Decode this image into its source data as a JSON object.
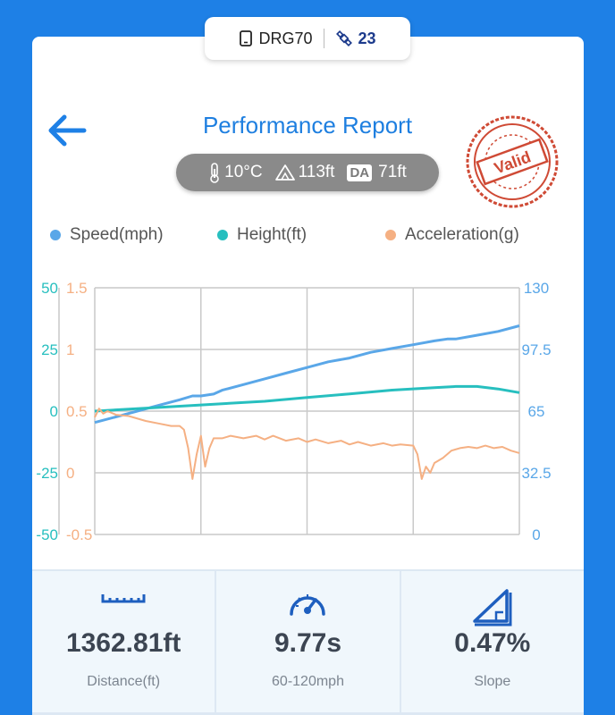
{
  "device": {
    "name": "DRG70",
    "satellites": "23",
    "phone_icon": "phone-icon",
    "satellite_icon": "satellite-icon"
  },
  "header": {
    "title": "Performance Report",
    "back_icon": "back-arrow-icon",
    "stamp_text": "Valid"
  },
  "conditions": {
    "temperature": "10°C",
    "altitude": "113ft",
    "da_label": "DA",
    "density_altitude": "71ft"
  },
  "legend": [
    {
      "label": "Speed(mph)",
      "color": "#5aa7e8"
    },
    {
      "label": "Height(ft)",
      "color": "#27bfbf"
    },
    {
      "label": "Acceleration(g)",
      "color": "#f5b083"
    }
  ],
  "chart_data": {
    "type": "line",
    "x": [],
    "axes": {
      "height_left": {
        "ticks": [
          "50",
          "25",
          "0",
          "-25",
          "-50"
        ],
        "range": [
          -50,
          50
        ],
        "color": "#27bfbf"
      },
      "accel_left": {
        "ticks": [
          "1.5",
          "1",
          "0.5",
          "0",
          "-0.5"
        ],
        "range": [
          -0.5,
          1.5
        ],
        "color": "#f5b083"
      },
      "speed_right": {
        "ticks": [
          "130",
          "97.5",
          "65",
          "32.5",
          "0"
        ],
        "range": [
          0,
          130
        ],
        "color": "#5aa7e8"
      }
    },
    "grid": true,
    "series": [
      {
        "name": "Speed(mph)",
        "color": "#5aa7e8",
        "axis": "speed_right",
        "values": [
          [
            0,
            59
          ],
          [
            0.05,
            62
          ],
          [
            0.1,
            65
          ],
          [
            0.15,
            68
          ],
          [
            0.2,
            71
          ],
          [
            0.23,
            73
          ],
          [
            0.25,
            73
          ],
          [
            0.28,
            74
          ],
          [
            0.3,
            76
          ],
          [
            0.35,
            79
          ],
          [
            0.4,
            82
          ],
          [
            0.45,
            85
          ],
          [
            0.5,
            88
          ],
          [
            0.55,
            91
          ],
          [
            0.6,
            93
          ],
          [
            0.65,
            96
          ],
          [
            0.7,
            98
          ],
          [
            0.75,
            100
          ],
          [
            0.8,
            102
          ],
          [
            0.83,
            103
          ],
          [
            0.85,
            103
          ],
          [
            0.9,
            105
          ],
          [
            0.95,
            107
          ],
          [
            1.0,
            110
          ]
        ]
      },
      {
        "name": "Height(ft)",
        "color": "#27bfbf",
        "axis": "height_left",
        "values": [
          [
            0,
            0
          ],
          [
            0.1,
            1
          ],
          [
            0.2,
            2
          ],
          [
            0.3,
            3
          ],
          [
            0.4,
            4
          ],
          [
            0.5,
            5.5
          ],
          [
            0.6,
            7
          ],
          [
            0.7,
            8.5
          ],
          [
            0.8,
            9.5
          ],
          [
            0.85,
            10
          ],
          [
            0.9,
            10
          ],
          [
            0.95,
            9
          ],
          [
            1.0,
            7.5
          ]
        ]
      },
      {
        "name": "Acceleration(g)",
        "color": "#f5b083",
        "axis": "accel_left",
        "values": [
          [
            0,
            0.45
          ],
          [
            0.01,
            0.52
          ],
          [
            0.02,
            0.48
          ],
          [
            0.03,
            0.5
          ],
          [
            0.05,
            0.47
          ],
          [
            0.08,
            0.46
          ],
          [
            0.12,
            0.42
          ],
          [
            0.15,
            0.4
          ],
          [
            0.18,
            0.38
          ],
          [
            0.2,
            0.38
          ],
          [
            0.21,
            0.35
          ],
          [
            0.22,
            0.2
          ],
          [
            0.23,
            -0.05
          ],
          [
            0.24,
            0.15
          ],
          [
            0.25,
            0.3
          ],
          [
            0.26,
            0.05
          ],
          [
            0.27,
            0.2
          ],
          [
            0.28,
            0.28
          ],
          [
            0.3,
            0.28
          ],
          [
            0.32,
            0.3
          ],
          [
            0.35,
            0.28
          ],
          [
            0.38,
            0.3
          ],
          [
            0.4,
            0.27
          ],
          [
            0.42,
            0.3
          ],
          [
            0.45,
            0.26
          ],
          [
            0.48,
            0.28
          ],
          [
            0.5,
            0.25
          ],
          [
            0.52,
            0.27
          ],
          [
            0.55,
            0.24
          ],
          [
            0.58,
            0.26
          ],
          [
            0.6,
            0.23
          ],
          [
            0.62,
            0.25
          ],
          [
            0.65,
            0.22
          ],
          [
            0.68,
            0.24
          ],
          [
            0.7,
            0.22
          ],
          [
            0.72,
            0.23
          ],
          [
            0.75,
            0.22
          ],
          [
            0.76,
            0.15
          ],
          [
            0.77,
            -0.05
          ],
          [
            0.78,
            0.05
          ],
          [
            0.79,
            0.0
          ],
          [
            0.8,
            0.08
          ],
          [
            0.82,
            0.12
          ],
          [
            0.84,
            0.18
          ],
          [
            0.86,
            0.2
          ],
          [
            0.88,
            0.21
          ],
          [
            0.9,
            0.2
          ],
          [
            0.92,
            0.22
          ],
          [
            0.94,
            0.2
          ],
          [
            0.96,
            0.21
          ],
          [
            0.98,
            0.18
          ],
          [
            1.0,
            0.16
          ]
        ]
      }
    ]
  },
  "stats": [
    {
      "value": "1362.81ft",
      "label": "Distance(ft)",
      "icon": "ruler-icon"
    },
    {
      "value": "9.77s",
      "label": "60-120mph",
      "icon": "speedometer-icon"
    },
    {
      "value": "0.47%",
      "label": "Slope",
      "icon": "slope-icon"
    }
  ]
}
